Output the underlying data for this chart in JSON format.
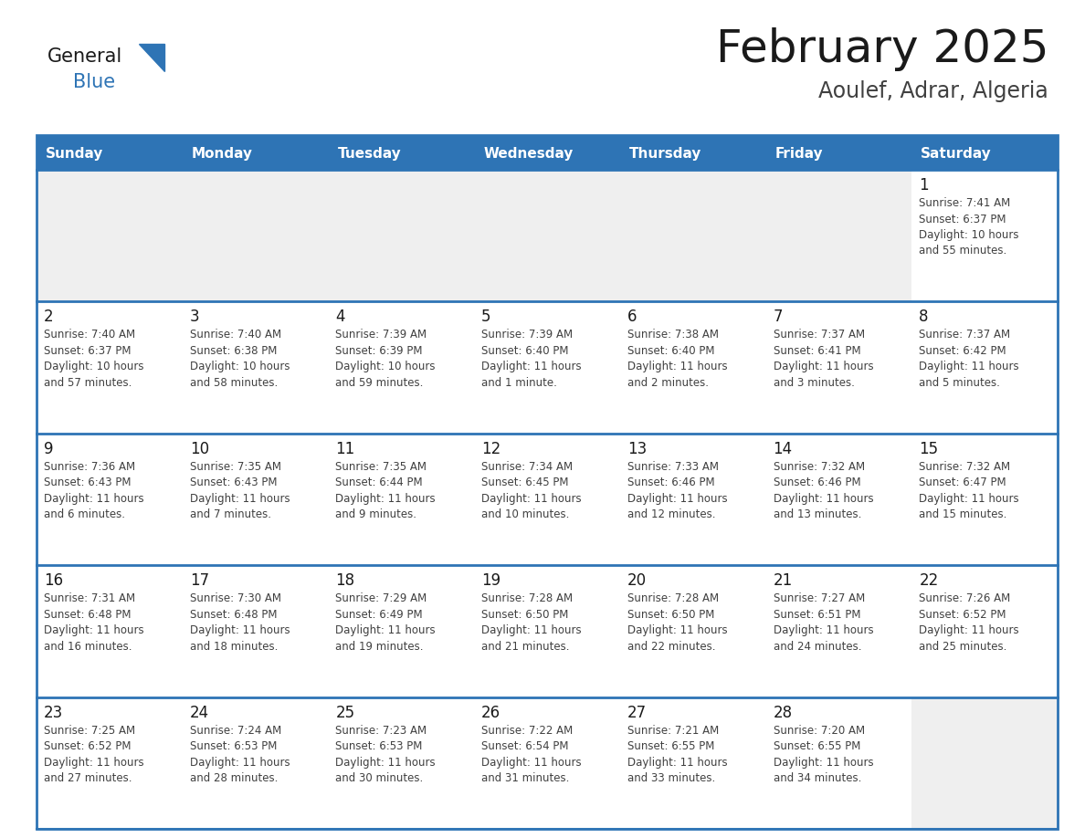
{
  "title": "February 2025",
  "subtitle": "Aoulef, Adrar, Algeria",
  "days_of_week": [
    "Sunday",
    "Monday",
    "Tuesday",
    "Wednesday",
    "Thursday",
    "Friday",
    "Saturday"
  ],
  "header_bg": "#2E74B5",
  "header_text": "#FFFFFF",
  "cell_bg_empty": "#EFEFEF",
  "cell_bg_white": "#FFFFFF",
  "border_color": "#2E74B5",
  "text_color": "#404040",
  "day_num_color": "#1a1a1a",
  "logo_general_color": "#1a1a1a",
  "logo_blue_color": "#2E74B5",
  "calendar_data": [
    [
      {
        "day": null,
        "info": null
      },
      {
        "day": null,
        "info": null
      },
      {
        "day": null,
        "info": null
      },
      {
        "day": null,
        "info": null
      },
      {
        "day": null,
        "info": null
      },
      {
        "day": null,
        "info": null
      },
      {
        "day": 1,
        "info": "Sunrise: 7:41 AM\nSunset: 6:37 PM\nDaylight: 10 hours\nand 55 minutes."
      }
    ],
    [
      {
        "day": 2,
        "info": "Sunrise: 7:40 AM\nSunset: 6:37 PM\nDaylight: 10 hours\nand 57 minutes."
      },
      {
        "day": 3,
        "info": "Sunrise: 7:40 AM\nSunset: 6:38 PM\nDaylight: 10 hours\nand 58 minutes."
      },
      {
        "day": 4,
        "info": "Sunrise: 7:39 AM\nSunset: 6:39 PM\nDaylight: 10 hours\nand 59 minutes."
      },
      {
        "day": 5,
        "info": "Sunrise: 7:39 AM\nSunset: 6:40 PM\nDaylight: 11 hours\nand 1 minute."
      },
      {
        "day": 6,
        "info": "Sunrise: 7:38 AM\nSunset: 6:40 PM\nDaylight: 11 hours\nand 2 minutes."
      },
      {
        "day": 7,
        "info": "Sunrise: 7:37 AM\nSunset: 6:41 PM\nDaylight: 11 hours\nand 3 minutes."
      },
      {
        "day": 8,
        "info": "Sunrise: 7:37 AM\nSunset: 6:42 PM\nDaylight: 11 hours\nand 5 minutes."
      }
    ],
    [
      {
        "day": 9,
        "info": "Sunrise: 7:36 AM\nSunset: 6:43 PM\nDaylight: 11 hours\nand 6 minutes."
      },
      {
        "day": 10,
        "info": "Sunrise: 7:35 AM\nSunset: 6:43 PM\nDaylight: 11 hours\nand 7 minutes."
      },
      {
        "day": 11,
        "info": "Sunrise: 7:35 AM\nSunset: 6:44 PM\nDaylight: 11 hours\nand 9 minutes."
      },
      {
        "day": 12,
        "info": "Sunrise: 7:34 AM\nSunset: 6:45 PM\nDaylight: 11 hours\nand 10 minutes."
      },
      {
        "day": 13,
        "info": "Sunrise: 7:33 AM\nSunset: 6:46 PM\nDaylight: 11 hours\nand 12 minutes."
      },
      {
        "day": 14,
        "info": "Sunrise: 7:32 AM\nSunset: 6:46 PM\nDaylight: 11 hours\nand 13 minutes."
      },
      {
        "day": 15,
        "info": "Sunrise: 7:32 AM\nSunset: 6:47 PM\nDaylight: 11 hours\nand 15 minutes."
      }
    ],
    [
      {
        "day": 16,
        "info": "Sunrise: 7:31 AM\nSunset: 6:48 PM\nDaylight: 11 hours\nand 16 minutes."
      },
      {
        "day": 17,
        "info": "Sunrise: 7:30 AM\nSunset: 6:48 PM\nDaylight: 11 hours\nand 18 minutes."
      },
      {
        "day": 18,
        "info": "Sunrise: 7:29 AM\nSunset: 6:49 PM\nDaylight: 11 hours\nand 19 minutes."
      },
      {
        "day": 19,
        "info": "Sunrise: 7:28 AM\nSunset: 6:50 PM\nDaylight: 11 hours\nand 21 minutes."
      },
      {
        "day": 20,
        "info": "Sunrise: 7:28 AM\nSunset: 6:50 PM\nDaylight: 11 hours\nand 22 minutes."
      },
      {
        "day": 21,
        "info": "Sunrise: 7:27 AM\nSunset: 6:51 PM\nDaylight: 11 hours\nand 24 minutes."
      },
      {
        "day": 22,
        "info": "Sunrise: 7:26 AM\nSunset: 6:52 PM\nDaylight: 11 hours\nand 25 minutes."
      }
    ],
    [
      {
        "day": 23,
        "info": "Sunrise: 7:25 AM\nSunset: 6:52 PM\nDaylight: 11 hours\nand 27 minutes."
      },
      {
        "day": 24,
        "info": "Sunrise: 7:24 AM\nSunset: 6:53 PM\nDaylight: 11 hours\nand 28 minutes."
      },
      {
        "day": 25,
        "info": "Sunrise: 7:23 AM\nSunset: 6:53 PM\nDaylight: 11 hours\nand 30 minutes."
      },
      {
        "day": 26,
        "info": "Sunrise: 7:22 AM\nSunset: 6:54 PM\nDaylight: 11 hours\nand 31 minutes."
      },
      {
        "day": 27,
        "info": "Sunrise: 7:21 AM\nSunset: 6:55 PM\nDaylight: 11 hours\nand 33 minutes."
      },
      {
        "day": 28,
        "info": "Sunrise: 7:20 AM\nSunset: 6:55 PM\nDaylight: 11 hours\nand 34 minutes."
      },
      {
        "day": null,
        "info": null
      }
    ]
  ]
}
